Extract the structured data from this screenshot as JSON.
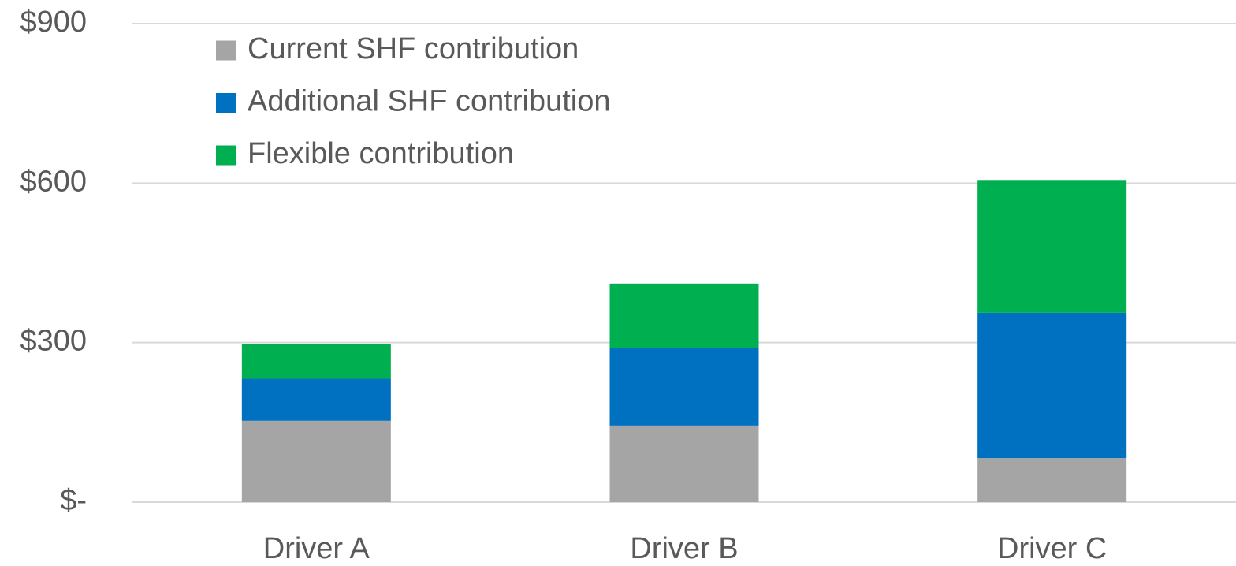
{
  "chart_data": {
    "type": "stacked_bar",
    "categories": [
      "Driver A",
      "Driver B",
      "Driver C"
    ],
    "series": [
      {
        "name": "Current SHF contribution",
        "color": "#a5a5a5",
        "values": [
          153,
          144,
          83
        ]
      },
      {
        "name": "Additional SHF contribution",
        "color": "#0070c0",
        "values": [
          79,
          146,
          273
        ]
      },
      {
        "name": "Flexible contribution",
        "color": "#00b050",
        "values": [
          65,
          121,
          250
        ]
      }
    ],
    "ylim": [
      0,
      900
    ],
    "yticks": [
      {
        "value": 0,
        "label": "$-"
      },
      {
        "value": 300,
        "label": "$300"
      },
      {
        "value": 600,
        "label": "$600"
      },
      {
        "value": 900,
        "label": "$900"
      }
    ],
    "grid": true,
    "legend": "upper-left"
  }
}
